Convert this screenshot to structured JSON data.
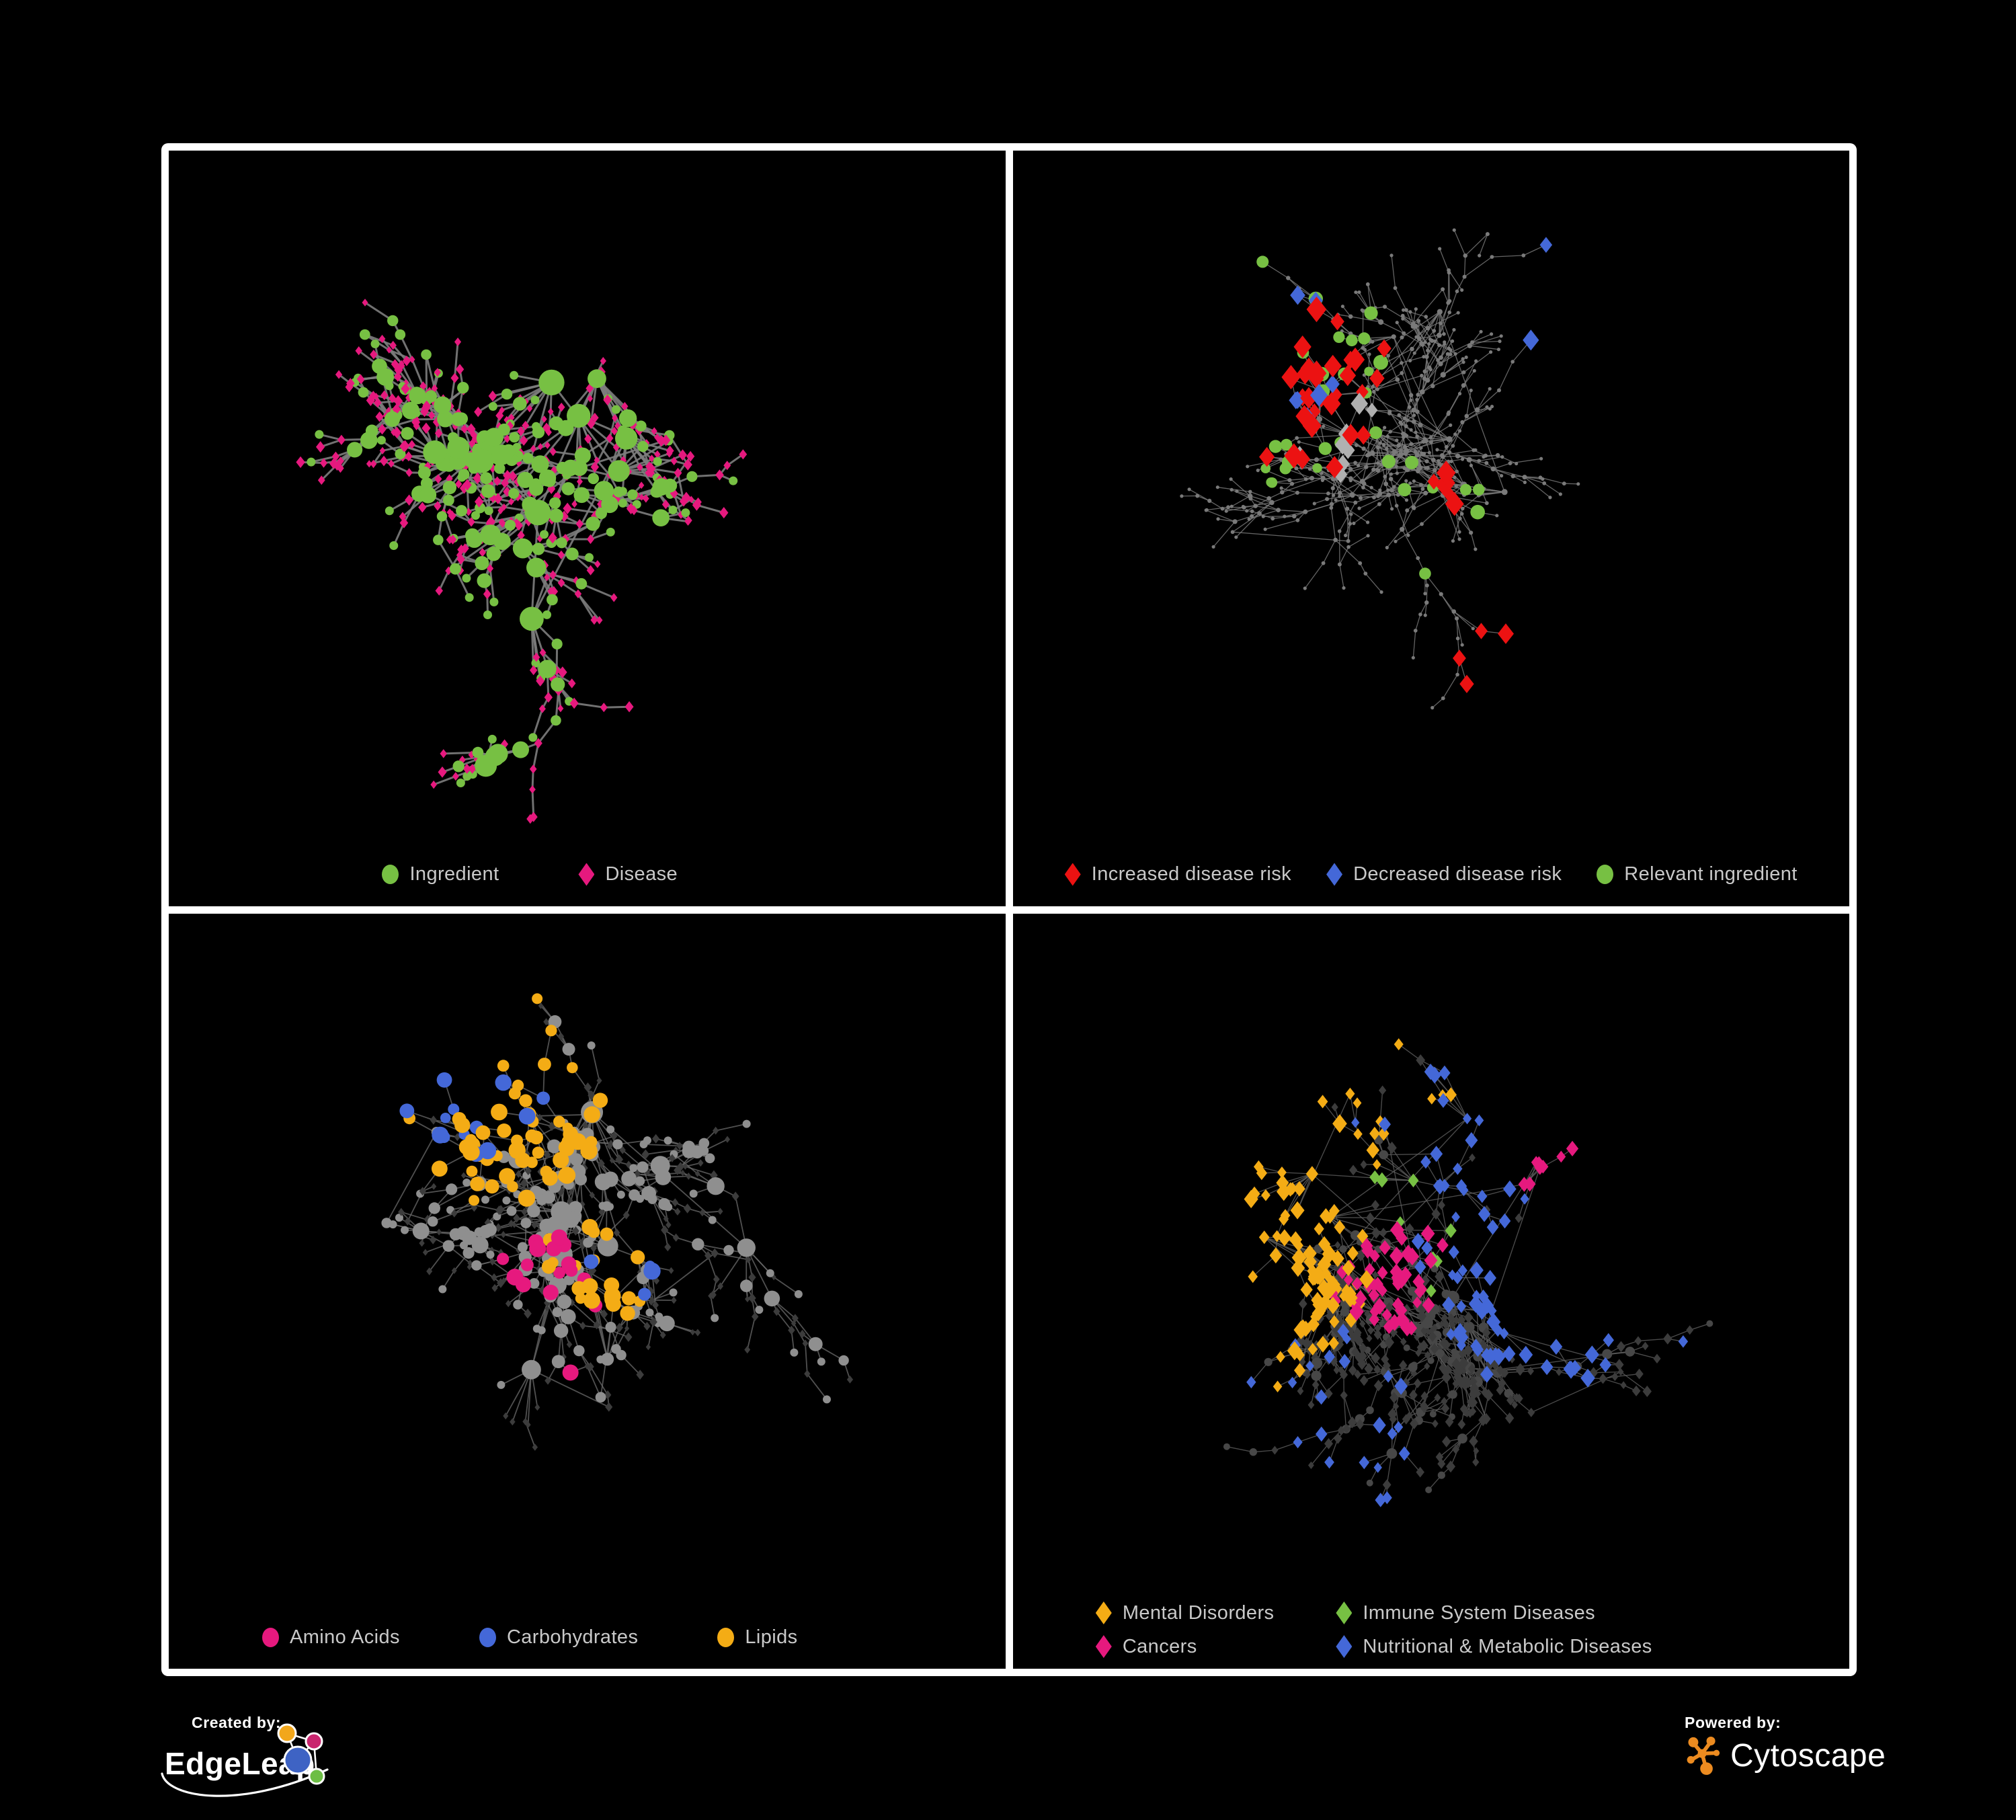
{
  "page": {
    "background": "#000000",
    "frame_color": "#FFFFFF",
    "legend_text_color": "#C9C9C9"
  },
  "panels": [
    {
      "id": "ingredient-disease",
      "legend": [
        {
          "shape": "circle",
          "color": "#77C043",
          "label": "Ingredient"
        },
        {
          "shape": "diamond",
          "color": "#E6197E",
          "label": "Disease"
        }
      ],
      "network": {
        "seed": 7,
        "nodes": 560,
        "hubs": 8,
        "step": 36,
        "cross": 0.05,
        "edge_color": "#7D7D7D",
        "edge_width": 3,
        "edge_opacity": 0.9,
        "base": {
          "circle": {
            "color": "#77C043",
            "rmin": 6.5,
            "rmax": 17,
            "ratio": 0.3
          },
          "diamond": {
            "color": "#E6197E",
            "size": 7
          }
        },
        "highlights": []
      }
    },
    {
      "id": "disease-risk",
      "legend": [
        {
          "shape": "diamond",
          "color": "#EC1212",
          "label": "Increased disease risk"
        },
        {
          "shape": "diamond",
          "color": "#4468D8",
          "label": "Decreased disease risk"
        },
        {
          "shape": "circle",
          "color": "#77C043",
          "label": "Relevant ingredient"
        }
      ],
      "network": {
        "seed": 19,
        "nodes": 560,
        "hubs": 9,
        "step": 34,
        "cross": 0.06,
        "edge_color": "#7C7C7C",
        "edge_width": 1.3,
        "edge_opacity": 0.8,
        "base": {
          "circle": {
            "color": "#7A7A7A",
            "rmin": 2.6,
            "rmax": 4.4,
            "ratio": 1
          },
          "diamond": null
        },
        "highlights": [
          {
            "shape": "diamond",
            "color": "#EC1212",
            "size": 15,
            "count": 30,
            "focus": [
              0.34,
              0.33
            ],
            "spread": 0.22
          },
          {
            "shape": "diamond",
            "color": "#EC1212",
            "size": 15,
            "count": 6,
            "focus": [
              0.52,
              0.5
            ],
            "spread": 0.12
          },
          {
            "shape": "diamond",
            "color": "#EC1212",
            "size": 14,
            "count": 4,
            "focus": [
              0.68,
              0.83
            ],
            "spread": 0.07
          },
          {
            "shape": "diamond",
            "color": "#4468D8",
            "size": 14,
            "count": 7,
            "focus": [
              0.27,
              0.31
            ],
            "spread": 0.09
          },
          {
            "shape": "diamond",
            "color": "#4468D8",
            "size": 14,
            "count": 2,
            "focus": [
              0.85,
              0.26
            ],
            "spread": 0.03
          },
          {
            "shape": "diamond",
            "color": "#B0B0B0",
            "size": 13,
            "count": 9,
            "focus": [
              0.37,
              0.4
            ],
            "spread": 0.2
          },
          {
            "shape": "circle",
            "color": "#77C043",
            "size": 9,
            "count": 26,
            "focus": [
              0.31,
              0.33
            ],
            "spread": 0.24
          },
          {
            "shape": "circle",
            "color": "#77C043",
            "size": 9,
            "count": 8,
            "focus": [
              0.5,
              0.55
            ],
            "spread": 0.9
          }
        ]
      }
    },
    {
      "id": "nutrient-classes",
      "legend": [
        {
          "shape": "circle",
          "color": "#E6197E",
          "label": "Amino Acids"
        },
        {
          "shape": "circle",
          "color": "#4468D8",
          "label": "Carbohydrates"
        },
        {
          "shape": "circle",
          "color": "#F4AC15",
          "label": "Lipids"
        }
      ],
      "network": {
        "seed": 5,
        "nodes": 560,
        "hubs": 8,
        "step": 36,
        "cross": 0.06,
        "edge_color": "#6B6B6B",
        "edge_width": 1.8,
        "edge_opacity": 0.75,
        "base": {
          "circle": {
            "color": "#8F8F8F",
            "rmin": 6,
            "rmax": 15,
            "ratio": 0.34
          },
          "diamond": {
            "color": "#3C3C3C",
            "size": 6
          }
        },
        "highlights": [
          {
            "shape": "circle",
            "color": "#F4AC15",
            "size": 10,
            "count": 55,
            "focus": [
              0.4,
              0.28
            ],
            "spread": 0.18
          },
          {
            "shape": "circle",
            "color": "#F4AC15",
            "size": 10,
            "count": 14,
            "focus": [
              0.52,
              0.56
            ],
            "spread": 0.1
          },
          {
            "shape": "circle",
            "color": "#F4AC15",
            "size": 10,
            "count": 8,
            "focus": [
              0.5,
              0.5
            ],
            "spread": 0.9
          },
          {
            "shape": "circle",
            "color": "#4468D8",
            "size": 10,
            "count": 14,
            "focus": [
              0.36,
              0.24
            ],
            "spread": 0.08
          },
          {
            "shape": "circle",
            "color": "#4468D8",
            "size": 10,
            "count": 4,
            "focus": [
              0.55,
              0.55
            ],
            "spread": 0.9
          },
          {
            "shape": "circle",
            "color": "#E6197E",
            "size": 11,
            "count": 16,
            "focus": [
              0.45,
              0.6
            ],
            "spread": 0.55
          }
        ]
      }
    },
    {
      "id": "disease-classes",
      "legend": [
        {
          "shape": "diamond",
          "color": "#F4AC15",
          "label": "Mental Disorders"
        },
        {
          "shape": "diamond",
          "color": "#77C043",
          "label": "Immune System Diseases"
        },
        {
          "shape": "diamond",
          "color": "#E6197E",
          "label": "Cancers"
        },
        {
          "shape": "diamond",
          "color": "#4468D8",
          "label": "Nutritional & Metabolic Diseases"
        }
      ],
      "network": {
        "seed": 83,
        "nodes": 640,
        "hubs": 9,
        "step": 33,
        "cross": 0.08,
        "edge_color": "#5E5E5E",
        "edge_width": 1.35,
        "edge_opacity": 0.8,
        "base": {
          "circle": {
            "color": "#474747",
            "rmin": 5,
            "rmax": 9,
            "ratio": 0.15
          },
          "diamond": {
            "color": "#3C3C3C",
            "size": 7.5
          }
        },
        "highlights": [
          {
            "shape": "diamond",
            "color": "#F4AC15",
            "size": 11,
            "count": 85,
            "focus": [
              0.17,
              0.43
            ],
            "spread": 0.12
          },
          {
            "shape": "diamond",
            "color": "#F4AC15",
            "size": 10,
            "count": 12,
            "focus": [
              0.3,
              0.15
            ],
            "spread": 0.35
          },
          {
            "shape": "diamond",
            "color": "#E6197E",
            "size": 11,
            "count": 55,
            "focus": [
              0.45,
              0.53
            ],
            "spread": 0.14
          },
          {
            "shape": "diamond",
            "color": "#E6197E",
            "size": 10,
            "count": 8,
            "focus": [
              0.87,
              0.25
            ],
            "spread": 0.06
          },
          {
            "shape": "diamond",
            "color": "#4468D8",
            "size": 11,
            "count": 38,
            "focus": [
              0.63,
              0.56
            ],
            "spread": 0.09
          },
          {
            "shape": "diamond",
            "color": "#4468D8",
            "size": 10,
            "count": 30,
            "focus": [
              0.72,
              0.24
            ],
            "spread": 0.28
          },
          {
            "shape": "diamond",
            "color": "#4468D8",
            "size": 10,
            "count": 22,
            "focus": [
              0.4,
              0.8
            ],
            "spread": 0.45
          },
          {
            "shape": "diamond",
            "color": "#77C043",
            "size": 10,
            "count": 10,
            "focus": [
              0.45,
              0.45
            ],
            "spread": 0.5
          }
        ]
      }
    }
  ],
  "footer": {
    "created_by": {
      "label": "Created by:",
      "brand": "EdgeLeap",
      "icon": "network-graph-logo",
      "logo_colors": {
        "orange": "#F2A71B",
        "magenta": "#C9256E",
        "blue": "#3E63C4",
        "green": "#6DBE45"
      },
      "swoosh_color": "#FFFFFF"
    },
    "powered_by": {
      "label": "Powered by:",
      "brand": "Cytoscape",
      "icon": "cytoscape-node-link-icon",
      "logo_color": "#EC8B20"
    }
  }
}
